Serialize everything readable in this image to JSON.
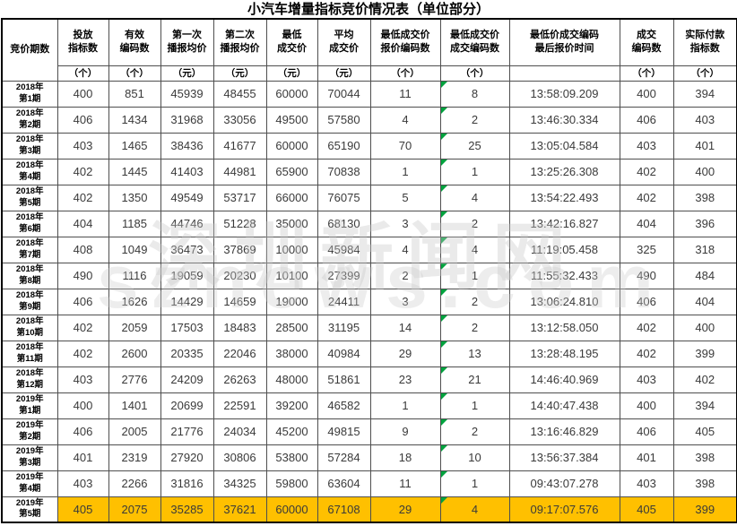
{
  "title": "小汽车增量指标竞价情况表（单位部分）",
  "watermark": {
    "line1": "深圳新闻网",
    "line2": "sznews.com"
  },
  "colors": {
    "highlight_row": "#FFC000",
    "error_triangle": "#00A33E",
    "grid_border": "#4f4f4f",
    "data_text": "#3a3a3a"
  },
  "table": {
    "columns": [
      {
        "label": "竞价期数",
        "unit": null
      },
      {
        "label": "投放\n指标数",
        "unit": "（个）"
      },
      {
        "label": "有效\n编码数",
        "unit": "（个）"
      },
      {
        "label": "第一次\n播报均价",
        "unit": "（元）"
      },
      {
        "label": "第二次\n播报均价",
        "unit": "（元）"
      },
      {
        "label": "最低\n成交价",
        "unit": "（元）"
      },
      {
        "label": "平均\n成交价",
        "unit": "（元）"
      },
      {
        "label": "最低成交价\n报价编码数",
        "unit": "（个）"
      },
      {
        "label": "最低成交价\n成交编码数",
        "unit": "（个）"
      },
      {
        "label": "最低价成交编码\n最后报价时间",
        "unit": ""
      },
      {
        "label": "成交\n编码数",
        "unit": "（个）"
      },
      {
        "label": "实际付款\n指标数",
        "unit": "（个）"
      }
    ],
    "rows": [
      {
        "period": "2018年\n第1期",
        "values": [
          "400",
          "851",
          "45939",
          "48455",
          "60000",
          "70044",
          "11",
          "8",
          "13:58:09.209",
          "400",
          "394"
        ],
        "highlighted": false
      },
      {
        "period": "2018年\n第2期",
        "values": [
          "406",
          "1434",
          "31968",
          "33056",
          "49500",
          "57580",
          "4",
          "2",
          "13:46:30.334",
          "406",
          "403"
        ],
        "highlighted": false
      },
      {
        "period": "2018年\n第3期",
        "values": [
          "403",
          "1465",
          "38436",
          "41677",
          "60000",
          "65190",
          "70",
          "25",
          "13:05:04.584",
          "403",
          "401"
        ],
        "highlighted": false
      },
      {
        "period": "2018年\n第4期",
        "values": [
          "402",
          "1445",
          "41403",
          "44981",
          "65900",
          "70838",
          "1",
          "1",
          "13:25:26.308",
          "402",
          "400"
        ],
        "highlighted": false
      },
      {
        "period": "2018年\n第5期",
        "values": [
          "402",
          "1350",
          "49549",
          "53717",
          "66000",
          "76075",
          "5",
          "4",
          "13:54:22.493",
          "402",
          "398"
        ],
        "highlighted": false
      },
      {
        "period": "2018年\n第6期",
        "values": [
          "404",
          "1185",
          "44746",
          "51228",
          "35000",
          "68130",
          "3",
          "2",
          "13:42:16.827",
          "404",
          "396"
        ],
        "highlighted": false
      },
      {
        "period": "2018年\n第7期",
        "values": [
          "408",
          "1049",
          "36473",
          "37869",
          "10000",
          "45984",
          "4",
          "4",
          "11:19:05.458",
          "325",
          "318"
        ],
        "highlighted": false
      },
      {
        "period": "2018年\n第8期",
        "values": [
          "490",
          "1116",
          "19059",
          "20230",
          "10100",
          "27399",
          "2",
          "1",
          "11:55:32.433",
          "490",
          "484"
        ],
        "highlighted": false
      },
      {
        "period": "2018年\n第9期",
        "values": [
          "406",
          "1626",
          "14429",
          "14659",
          "19000",
          "24411",
          "3",
          "2",
          "13:06:24.810",
          "406",
          "404"
        ],
        "highlighted": false
      },
      {
        "period": "2018年\n第10期",
        "values": [
          "402",
          "2059",
          "17503",
          "18483",
          "28500",
          "31195",
          "14",
          "2",
          "13:12:58.050",
          "402",
          "400"
        ],
        "highlighted": false
      },
      {
        "period": "2018年\n第11期",
        "values": [
          "402",
          "2600",
          "20335",
          "22046",
          "38000",
          "40984",
          "29",
          "13",
          "13:28:48.195",
          "402",
          "399"
        ],
        "highlighted": false
      },
      {
        "period": "2018年\n第12期",
        "values": [
          "403",
          "2776",
          "24209",
          "26263",
          "48000",
          "51861",
          "23",
          "21",
          "14:46:40.969",
          "403",
          "402"
        ],
        "highlighted": false
      },
      {
        "period": "2019年\n第1期",
        "values": [
          "400",
          "1401",
          "20699",
          "22591",
          "39200",
          "46582",
          "1",
          "1",
          "14:40:47.438",
          "400",
          "394"
        ],
        "highlighted": false
      },
      {
        "period": "2019年\n第2期",
        "values": [
          "406",
          "2005",
          "21776",
          "24034",
          "45200",
          "49815",
          "9",
          "2",
          "13:16:46.829",
          "406",
          "405"
        ],
        "highlighted": false
      },
      {
        "period": "2019年\n第3期",
        "values": [
          "401",
          "2319",
          "27920",
          "30806",
          "53800",
          "57284",
          "18",
          "10",
          "13:56:37.384",
          "401",
          "398"
        ],
        "highlighted": false
      },
      {
        "period": "2019年\n第4期",
        "values": [
          "403",
          "2266",
          "31816",
          "34325",
          "59800",
          "63604",
          "11",
          "1",
          "09:43:07.278",
          "403",
          "398"
        ],
        "highlighted": false
      },
      {
        "period": "2019年\n第5期",
        "values": [
          "405",
          "2075",
          "35285",
          "37621",
          "60000",
          "67108",
          "29",
          "4",
          "09:17:07.576",
          "405",
          "399"
        ],
        "highlighted": true
      }
    ]
  }
}
